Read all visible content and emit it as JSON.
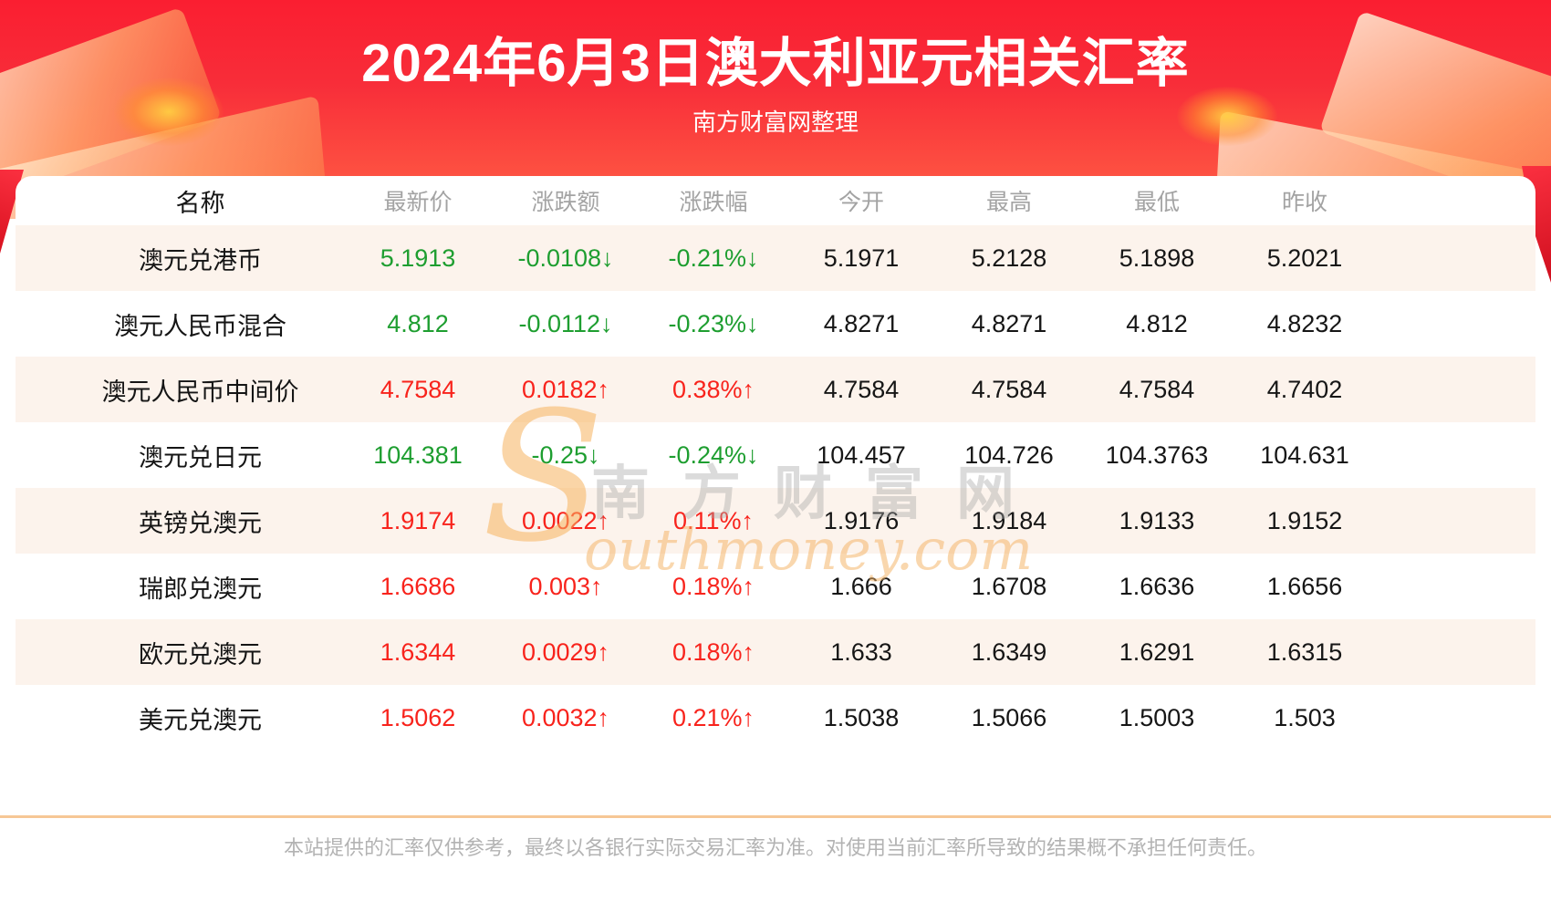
{
  "banner": {
    "title": "2024年6月3日澳大利亚元相关汇率",
    "subtitle": "南方财富网整理"
  },
  "table": {
    "headers": [
      "名称",
      "最新价",
      "涨跌额",
      "涨跌幅",
      "今开",
      "最高",
      "最低",
      "昨收"
    ],
    "arrow_up": "↑",
    "arrow_down": "↓",
    "rows": [
      {
        "name": "澳元兑港币",
        "last": "5.1913",
        "change": "-0.0108",
        "pct": "-0.21%",
        "trend": "down",
        "open": "5.1971",
        "high": "5.2128",
        "low": "5.1898",
        "prev": "5.2021"
      },
      {
        "name": "澳元人民币混合",
        "last": "4.812",
        "change": "-0.0112",
        "pct": "-0.23%",
        "trend": "down",
        "open": "4.8271",
        "high": "4.8271",
        "low": "4.812",
        "prev": "4.8232"
      },
      {
        "name": "澳元人民币中间价",
        "last": "4.7584",
        "change": "0.0182",
        "pct": "0.38%",
        "trend": "up",
        "open": "4.7584",
        "high": "4.7584",
        "low": "4.7584",
        "prev": "4.7402"
      },
      {
        "name": "澳元兑日元",
        "last": "104.381",
        "change": "-0.25",
        "pct": "-0.24%",
        "trend": "down",
        "open": "104.457",
        "high": "104.726",
        "low": "104.3763",
        "prev": "104.631"
      },
      {
        "name": "英镑兑澳元",
        "last": "1.9174",
        "change": "0.0022",
        "pct": "0.11%",
        "trend": "up",
        "open": "1.9176",
        "high": "1.9184",
        "low": "1.9133",
        "prev": "1.9152"
      },
      {
        "name": "瑞郎兑澳元",
        "last": "1.6686",
        "change": "0.003",
        "pct": "0.18%",
        "trend": "up",
        "open": "1.666",
        "high": "1.6708",
        "low": "1.6636",
        "prev": "1.6656"
      },
      {
        "name": "欧元兑澳元",
        "last": "1.6344",
        "change": "0.0029",
        "pct": "0.18%",
        "trend": "up",
        "open": "1.633",
        "high": "1.6349",
        "low": "1.6291",
        "prev": "1.6315"
      },
      {
        "name": "美元兑澳元",
        "last": "1.5062",
        "change": "0.0032",
        "pct": "0.21%",
        "trend": "up",
        "open": "1.5038",
        "high": "1.5066",
        "low": "1.5003",
        "prev": "1.503"
      }
    ]
  },
  "watermark": {
    "s_initial": "S",
    "cn": "南方财富网",
    "en_rest": "outhmoney.com"
  },
  "footer": {
    "disclaimer": "本站提供的汇率仅供参考，最终以各银行实际交易汇率为准。对使用当前汇率所导致的结果概不承担任何责任。"
  },
  "colors": {
    "up": "#f8231c",
    "down": "#1e9e30",
    "value": "#161616",
    "header_text": "#a3a3a3",
    "banner_red": "#f82d39",
    "row_alt": "#fcf3ec",
    "divider": "#f6c795",
    "disclaimer": "#b3b3b3"
  }
}
